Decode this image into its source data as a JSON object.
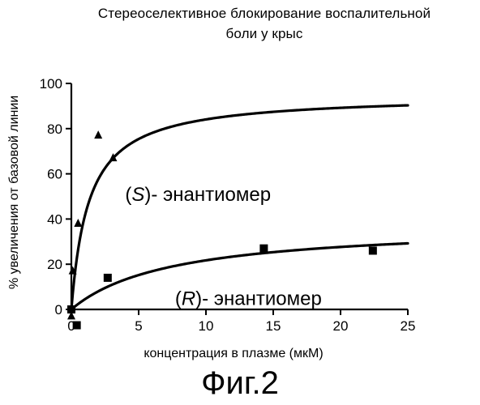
{
  "chart_data": {
    "type": "scatter",
    "title": "Стереоселективное блокирование воспалительной боли у крыс",
    "title_lines": [
      "Стереоселективное блокирование воспалительной",
      "боли у крыс"
    ],
    "xlabel": "концентрация в плазме (мкМ)",
    "ylabel": "% увеличения от базовой линии",
    "xlim": [
      0,
      25
    ],
    "ylim": [
      0,
      100
    ],
    "x_ticks": [
      0,
      5,
      10,
      15,
      20,
      25
    ],
    "y_ticks": [
      0,
      20,
      40,
      60,
      80,
      100
    ],
    "grid": false,
    "series": [
      {
        "name": "(S)- энантиомер",
        "marker": "triangle",
        "points": [
          [
            0,
            -3
          ],
          [
            0.1,
            17
          ],
          [
            0.5,
            38
          ],
          [
            2,
            77
          ],
          [
            3.1,
            67
          ]
        ],
        "fit": {
          "model": "hyperbolic",
          "ymax": 95,
          "k": 1.3
        }
      },
      {
        "name": "(R)- энантиомер",
        "marker": "square",
        "points": [
          [
            0,
            0
          ],
          [
            0.4,
            -7
          ],
          [
            2.7,
            14
          ],
          [
            14.3,
            27
          ],
          [
            22.4,
            26
          ]
        ],
        "fit": {
          "model": "hyperbolic",
          "ymax": 38,
          "k": 7.5
        }
      }
    ],
    "annotations": [
      {
        "italic": "S",
        "rest": ")- энантиомер",
        "x": 4,
        "y": 48
      },
      {
        "italic": "R",
        "rest": ")- энантиомер",
        "x": 7.7,
        "y": 2
      }
    ]
  },
  "figure_caption": "Фиг.2"
}
